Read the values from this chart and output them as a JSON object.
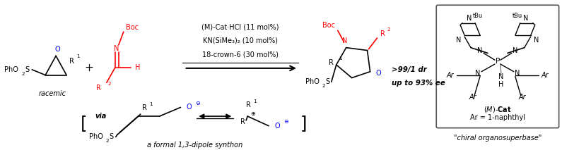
{
  "figsize": [
    7.95,
    2.13
  ],
  "dpi": 100,
  "bg_color": "#ffffff",
  "conditions_line1": "(M)-Cat·HCl (11 mol%)",
  "conditions_line2": "KN(SiMe₃)₂ (10 mol%)",
  "conditions_line3": "18-crown-6 (30 mol%)",
  "result_line1": ">99/1 dr",
  "result_line2": "up to 93% ee",
  "label_racemic": "racemic",
  "label_dipole": "a formal 1,3-dipole synthon",
  "label_cat_line": "(M)-Cat",
  "label_ar": "Ar = 1-naphthyl",
  "label_chiral": "\"chiral organosuperbase\""
}
